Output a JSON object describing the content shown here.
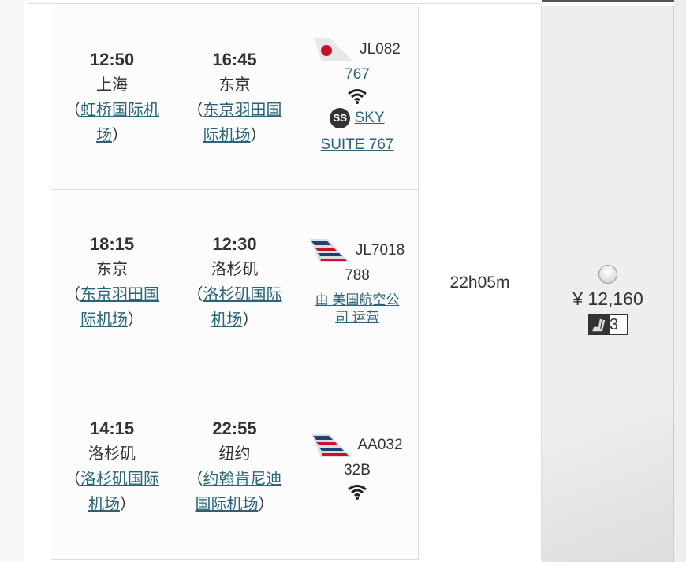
{
  "segments": [
    {
      "dep_time": "12:50",
      "dep_city": "上海",
      "dep_airport": "虹桥国际机场",
      "arr_time": "16:45",
      "arr_city": "东京",
      "arr_airport": "东京羽田国际机场",
      "flight": "JL082",
      "aircraft": "767",
      "aircraft_link": true,
      "wifi": true,
      "cabin": "SKY SUITE 767",
      "cabin_badge": "SS",
      "operator": null,
      "airline": "JAL"
    },
    {
      "dep_time": "18:15",
      "dep_city": "东京",
      "dep_airport": "东京羽田国际机场",
      "arr_time": "12:30",
      "arr_city": "洛杉矶",
      "arr_airport": "洛杉矶国际机场",
      "flight": "JL7018",
      "aircraft": "788",
      "aircraft_link": false,
      "wifi": false,
      "operator": "由 美国航空公司 运营",
      "airline": "AA"
    },
    {
      "dep_time": "14:15",
      "dep_city": "洛杉矶",
      "dep_airport": "洛杉矶国际机场",
      "arr_time": "22:55",
      "arr_city": "纽约",
      "arr_airport": "约翰肯尼迪国际机场",
      "flight": "AA032",
      "aircraft": "32B",
      "aircraft_link": false,
      "wifi": true,
      "operator": null,
      "airline": "AA"
    }
  ],
  "duration": "22h05m",
  "fare": {
    "price": "¥ 12,160",
    "seats": "3",
    "selected": false
  },
  "paren_open": "（",
  "paren_close": "）",
  "colors": {
    "link": "#2b6478",
    "jal_red": "#c8102e"
  }
}
